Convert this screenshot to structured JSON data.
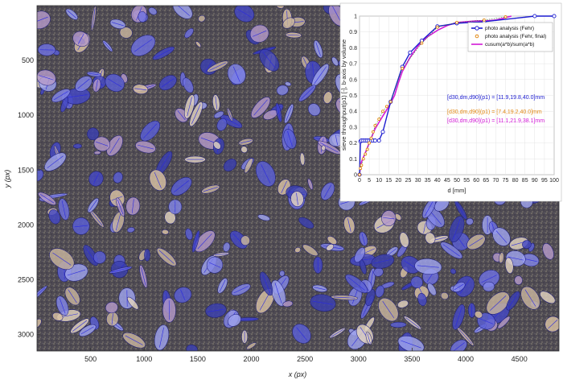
{
  "main_plot": {
    "xlabel": "x (px)",
    "ylabel": "y (px)",
    "xlim": [
      0,
      4870
    ],
    "ylim": [
      0,
      3150
    ],
    "y_reversed": true,
    "xticks": [
      "500",
      "1000",
      "1500",
      "2000",
      "2500",
      "3000",
      "3500",
      "4000",
      "4500"
    ],
    "yticks": [
      "500",
      "1000",
      "1500",
      "2000",
      "2500",
      "3000"
    ]
  },
  "annotations": {
    "blue": "[d30,dm,d90](p1) = [11.9,19.8,40.0]mm",
    "orange": "[d30,dm,d90](p1) = [7.4,19.2,40.0]mm",
    "magenta": "[d30,dm,d90](p1) = [11.1,21.9,38.1]mm"
  },
  "colors": {
    "blue": "#1c1cd0",
    "orange": "#e28a17",
    "magenta": "#d21ad6",
    "green": "#2e7d2e"
  },
  "chart_data": {
    "type": "line",
    "title": "",
    "xlabel": "d [mm]",
    "ylabel": "sieve throughput(p1) [-], b-axis by volume",
    "xlim": [
      0,
      100
    ],
    "ylim": [
      0,
      1
    ],
    "xticks": [
      0,
      5,
      10,
      15,
      20,
      25,
      30,
      35,
      40,
      45,
      50,
      55,
      60,
      65,
      70,
      75,
      80,
      85,
      90,
      95,
      100
    ],
    "yticks": [
      0,
      0.1,
      0.2,
      0.3,
      0.4,
      0.5,
      0.6,
      0.7,
      0.8,
      0.9,
      1
    ],
    "grid": true,
    "legend_position": "top-right",
    "series": [
      {
        "name": "photo analysis (Fehr)",
        "color": "#1c1cd0",
        "marker": "circle",
        "x": [
          0,
          0.5,
          1,
          2,
          3,
          4,
          5,
          6,
          7,
          8,
          10,
          12,
          16,
          22,
          26,
          32,
          40,
          50,
          64,
          90,
          100
        ],
        "y": [
          0,
          0.21,
          0.215,
          0.215,
          0.215,
          0.215,
          0.215,
          0.215,
          0.215,
          0.215,
          0.215,
          0.27,
          0.46,
          0.68,
          0.77,
          0.845,
          0.935,
          0.955,
          0.965,
          1.0,
          1.0
        ]
      },
      {
        "name": "photo analysis (Fehr, final)",
        "color": "#e28a17",
        "marker": "circle",
        "x": [
          0,
          0.5,
          1,
          2,
          3,
          4,
          5,
          6,
          7,
          8,
          10,
          12,
          14,
          16,
          22,
          32,
          40,
          50,
          64,
          75
        ],
        "y": [
          0,
          0.04,
          0.06,
          0.1,
          0.13,
          0.16,
          0.2,
          0.23,
          0.27,
          0.31,
          0.35,
          0.4,
          0.43,
          0.46,
          0.67,
          0.83,
          0.93,
          0.96,
          0.975,
          0.995
        ]
      },
      {
        "name": "cusum(a*b)/sum(a*b)",
        "color": "#d21ad6",
        "marker": "none",
        "x": [
          0,
          0.5,
          1,
          2,
          3,
          4,
          5,
          6,
          7,
          8,
          10,
          12,
          14,
          16,
          18,
          20,
          22,
          26,
          30,
          35,
          40,
          45,
          50,
          55,
          60,
          65,
          70,
          75,
          78
        ],
        "y": [
          0,
          0.05,
          0.08,
          0.11,
          0.14,
          0.17,
          0.2,
          0.23,
          0.26,
          0.29,
          0.33,
          0.37,
          0.41,
          0.45,
          0.5,
          0.58,
          0.65,
          0.74,
          0.81,
          0.87,
          0.91,
          0.94,
          0.96,
          0.965,
          0.97,
          0.97,
          0.975,
          0.99,
          1.0
        ]
      }
    ]
  }
}
